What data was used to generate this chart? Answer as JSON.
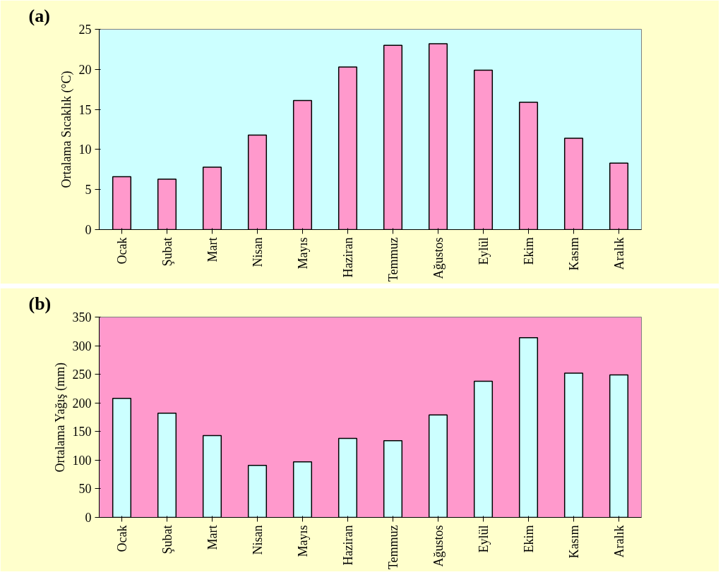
{
  "chart_data": [
    {
      "type": "bar",
      "title": "(a)",
      "ylabel": "Ortalama Sıcaklık (°C)",
      "categories": [
        "Ocak",
        "Şubat",
        "Mart",
        "Nisan",
        "Mayıs",
        "Haziran",
        "Temmuz",
        "Ağustos",
        "Eylül",
        "Ekim",
        "Kasım",
        "Aralık"
      ],
      "series": [
        {
          "color": "#ff99cc",
          "values": [
            6.6,
            6.3,
            7.8,
            11.8,
            16.1,
            20.3,
            23.0,
            23.2,
            19.9,
            15.9,
            11.4,
            8.3
          ]
        }
      ],
      "ylim": [
        0,
        25
      ],
      "yticks": [
        0,
        5,
        10,
        15,
        20,
        25
      ],
      "grid": false
    },
    {
      "type": "bar",
      "title": "(b)",
      "ylabel": "Ortalama Yağış (mm)",
      "categories": [
        "Ocak",
        "Şubat",
        "Mart",
        "Nisan",
        "Mayıs",
        "Haziran",
        "Temmuz",
        "Ağustos",
        "Eylül",
        "Ekim",
        "Kasım",
        "Aralık"
      ],
      "series": [
        {
          "color": "#ccffff",
          "values": [
            208,
            182,
            143,
            91,
            97,
            138,
            134,
            179,
            238,
            314,
            252,
            249
          ]
        }
      ],
      "ylim": [
        0,
        350
      ],
      "yticks": [
        0,
        50,
        100,
        150,
        200,
        250,
        300,
        350
      ],
      "grid": false
    }
  ]
}
